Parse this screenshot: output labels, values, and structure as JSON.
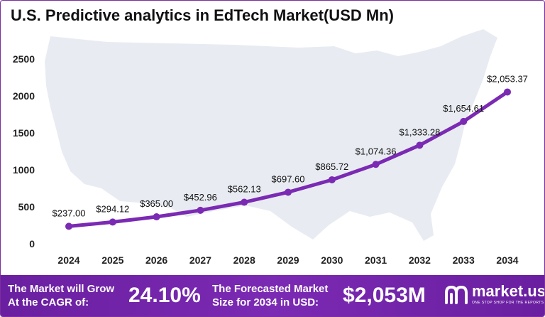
{
  "title": "U.S. Predictive analytics in EdTech Market(USD Mn)",
  "colors": {
    "line": "#7b2ab3",
    "footer": "#6a1fa0",
    "map": "#e8ecf2",
    "axis": "#222222"
  },
  "chart_data": {
    "type": "line",
    "title": "U.S. Predictive analytics in EdTech Market(USD Mn)",
    "xlabel": "",
    "ylabel": "",
    "x": [
      "2024",
      "2025",
      "2026",
      "2027",
      "2028",
      "2029",
      "2030",
      "2031",
      "2032",
      "2033",
      "2034"
    ],
    "values": [
      237.0,
      294.12,
      365.0,
      452.96,
      562.13,
      697.6,
      865.72,
      1074.36,
      1333.28,
      1654.61,
      2053.37
    ],
    "data_labels": [
      "$237.00",
      "$294.12",
      "$365.00",
      "$452.96",
      "$562.13",
      "$697.60",
      "$865.72",
      "$1,074.36",
      "$1,333.28",
      "$1,654.61",
      "$2,053.37"
    ],
    "y_ticks": [
      "0",
      "500",
      "1000",
      "1500",
      "2000",
      "2500"
    ],
    "ylim": [
      0,
      2500
    ],
    "grid": false,
    "background_map": "united-states-map"
  },
  "footer": {
    "cagr_text_line1": "The Market will Grow",
    "cagr_text_line2": "At the CAGR of:",
    "cagr_value": "24.10%",
    "forecast_text_line1": "The Forecasted Market",
    "forecast_text_line2": "Size for 2034 in USD:",
    "forecast_value": "$2,053M",
    "logo_name": "market.us",
    "logo_tagline": "ONE STOP SHOP FOR THE REPORTS",
    "logo_icon": "market-us-logo-icon"
  }
}
